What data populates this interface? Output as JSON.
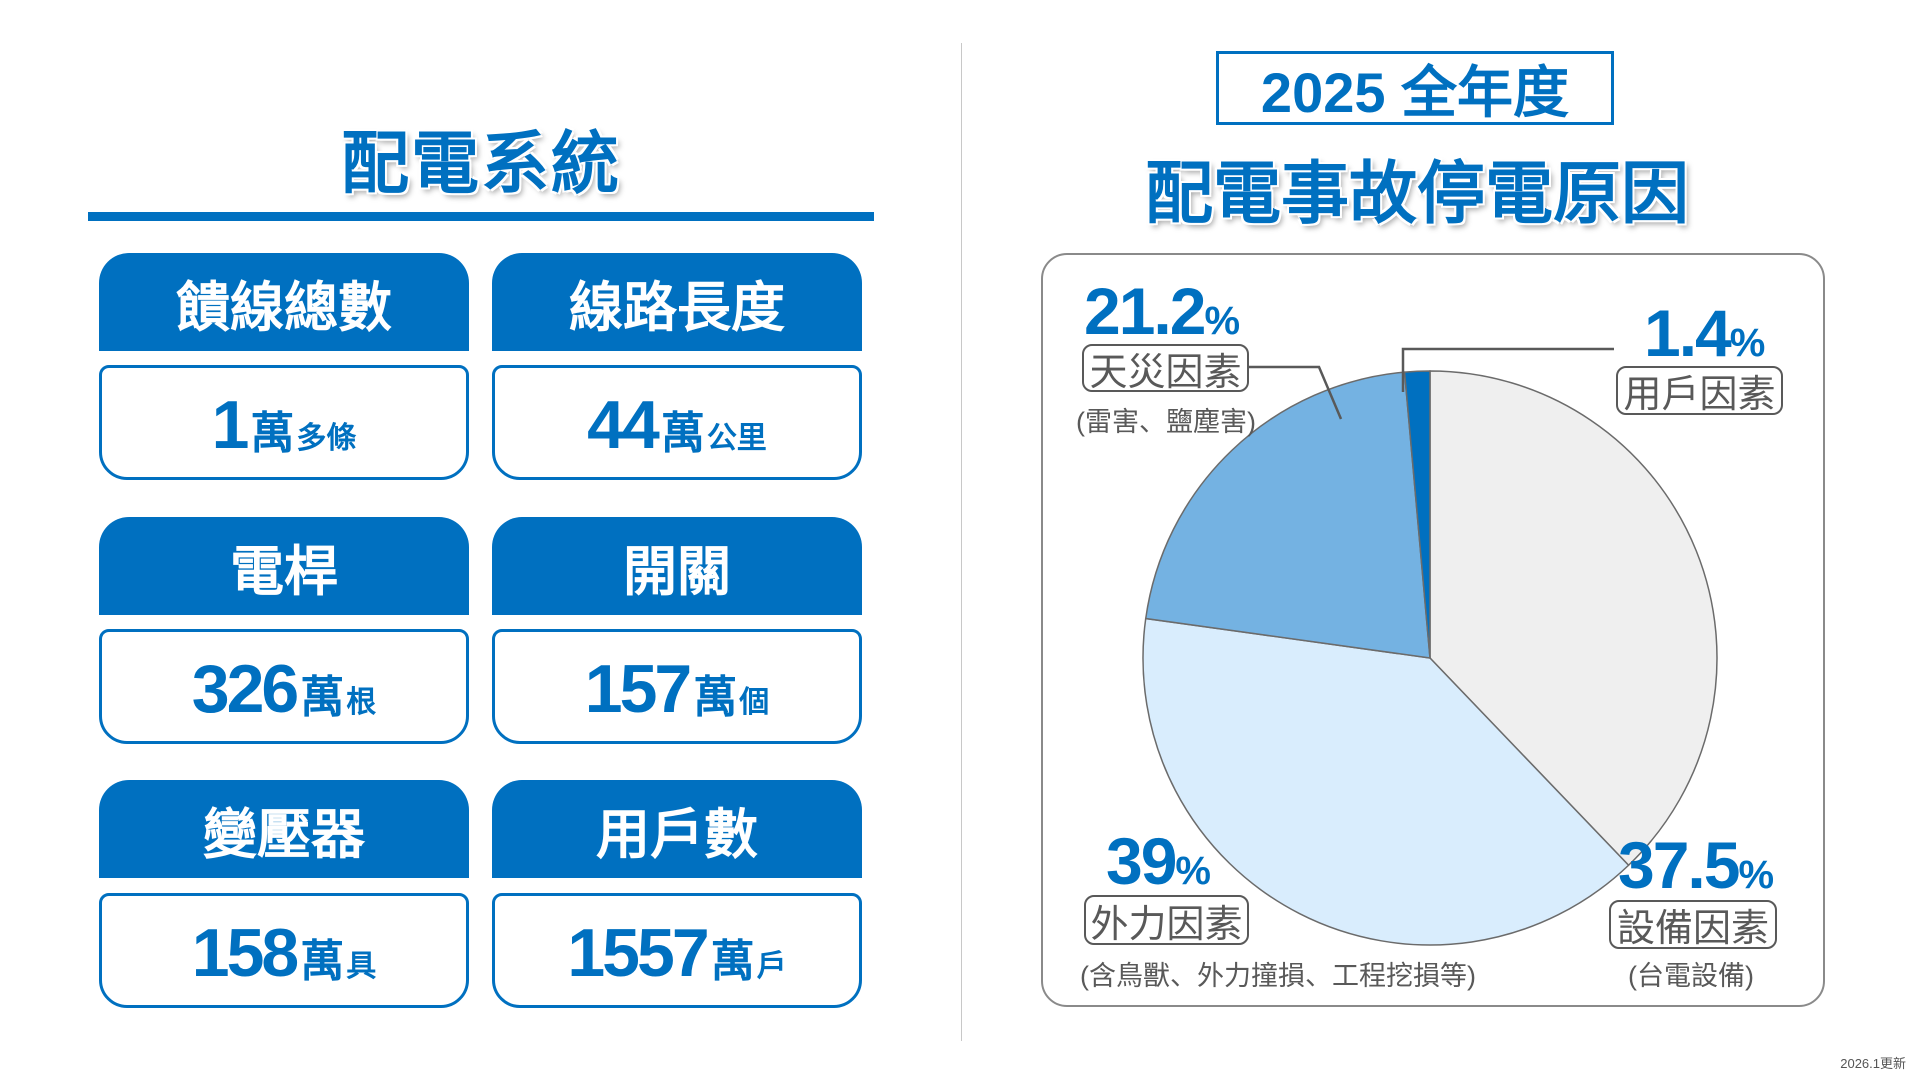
{
  "left": {
    "title": "配電系統",
    "cards": [
      {
        "label": "饋線總數",
        "num": "1",
        "wan": "萬",
        "unit": "多條"
      },
      {
        "label": "線路長度",
        "num": "44",
        "wan": "萬",
        "unit": "公里"
      },
      {
        "label": "電桿",
        "num": "326",
        "wan": "萬",
        "unit": "根"
      },
      {
        "label": "開關",
        "num": "157",
        "wan": "萬",
        "unit": "個"
      },
      {
        "label": "變壓器",
        "num": "158",
        "wan": "萬",
        "unit": "具"
      },
      {
        "label": "用戶數",
        "num": "1557",
        "wan": "萬",
        "unit": "戶"
      }
    ]
  },
  "right": {
    "title_box": "2025 全年度",
    "subtitle": "配電事故停電原因"
  },
  "chart_data": {
    "type": "pie",
    "title": "配電事故停電原因",
    "slices": [
      {
        "label": "設備因素",
        "value": 37.5,
        "pct_text": "37.5",
        "note": "(台電設備)",
        "color": "#efefef"
      },
      {
        "label": "外力因素",
        "value": 39,
        "pct_text": "39",
        "note": "(含鳥獸、外力撞損、工程挖損等)",
        "color": "#d9edfd"
      },
      {
        "label": "天災因素",
        "value": 21.2,
        "pct_text": "21.2",
        "note": "(雷害、鹽塵害)",
        "color": "#74b2e2"
      },
      {
        "label": "用戶因素",
        "value": 1.4,
        "pct_text": "1.4",
        "note": "",
        "color": "#0070c0"
      }
    ],
    "unit": "%"
  },
  "footer": {
    "updated": "2026.1更新"
  },
  "colors": {
    "accent": "#0070c0",
    "text_gray": "#595959"
  }
}
